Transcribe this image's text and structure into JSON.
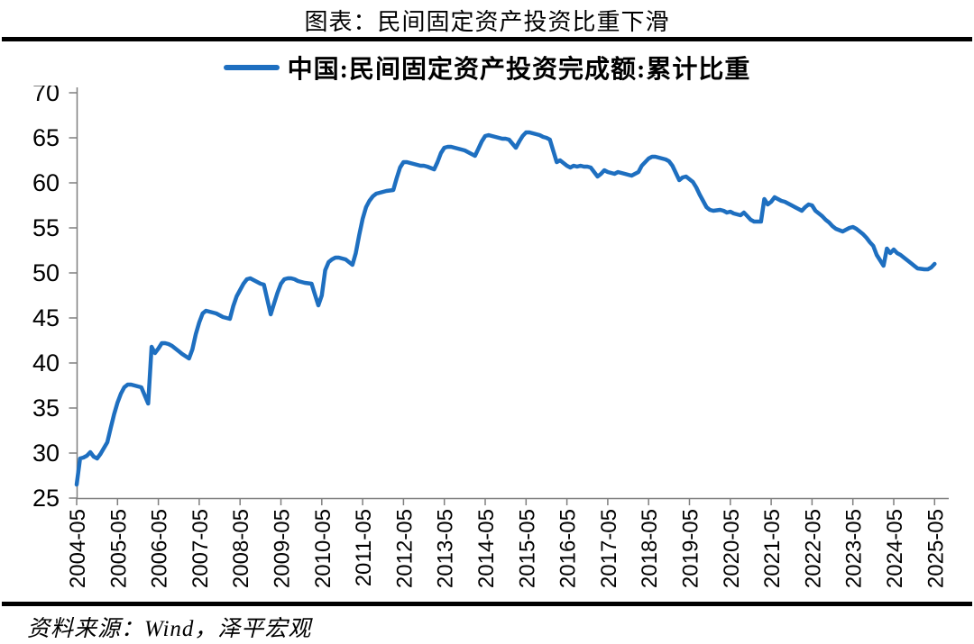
{
  "title": "图表：民间固定资产投资比重下滑",
  "legend": {
    "series_label": "中国:民间固定资产投资完成额:累计比重"
  },
  "source_note": "资料来源：Wind，泽平宏观",
  "colors": {
    "line": "#1E6FC0",
    "axis": "#7F7F7F",
    "rule": "#000000",
    "text": "#000000"
  },
  "chart_data": {
    "type": "line",
    "title": "图表：民间固定资产投资比重下滑",
    "xlabel": "",
    "ylabel": "",
    "unit": "%",
    "ylim": [
      25,
      70
    ],
    "y_ticks": [
      25,
      30,
      35,
      40,
      45,
      50,
      55,
      60,
      65,
      70
    ],
    "x_tick_labels": [
      "2004-05",
      "2005-05",
      "2006-05",
      "2007-05",
      "2008-05",
      "2009-05",
      "2010-05",
      "2011-05",
      "2012-05",
      "2013-05",
      "2014-05",
      "2015-05",
      "2016-05",
      "2017-05",
      "2018-05",
      "2019-05",
      "2020-05",
      "2021-05",
      "2022-05",
      "2023-05",
      "2024-05",
      "2025-05"
    ],
    "grid": false,
    "legend_position": "top-center",
    "line_color": "#1E6FC0",
    "series": [
      {
        "name": "中国:民间固定资产投资完成额:累计比重",
        "points": [
          [
            "2004-05",
            26.5
          ],
          [
            "2004-06",
            29.4
          ],
          [
            "2004-07",
            29.5
          ],
          [
            "2004-08",
            29.7
          ],
          [
            "2004-09",
            30.1
          ],
          [
            "2004-10",
            29.6
          ],
          [
            "2004-11",
            29.4
          ],
          [
            "2004-12",
            29.9
          ],
          [
            "2005-02",
            31.2
          ],
          [
            "2005-03",
            32.8
          ],
          [
            "2005-04",
            34.3
          ],
          [
            "2005-05",
            35.6
          ],
          [
            "2005-06",
            36.6
          ],
          [
            "2005-07",
            37.3
          ],
          [
            "2005-08",
            37.6
          ],
          [
            "2005-09",
            37.6
          ],
          [
            "2005-10",
            37.5
          ],
          [
            "2005-11",
            37.4
          ],
          [
            "2005-12",
            37.3
          ],
          [
            "2006-02",
            35.5
          ],
          [
            "2006-03",
            41.8
          ],
          [
            "2006-04",
            41.1
          ],
          [
            "2006-05",
            41.6
          ],
          [
            "2006-06",
            42.2
          ],
          [
            "2006-07",
            42.2
          ],
          [
            "2006-08",
            42.1
          ],
          [
            "2006-09",
            41.9
          ],
          [
            "2006-10",
            41.6
          ],
          [
            "2006-11",
            41.3
          ],
          [
            "2006-12",
            41.0
          ],
          [
            "2007-02",
            40.5
          ],
          [
            "2007-03",
            41.5
          ],
          [
            "2007-04",
            43.2
          ],
          [
            "2007-05",
            44.5
          ],
          [
            "2007-06",
            45.5
          ],
          [
            "2007-07",
            45.8
          ],
          [
            "2007-08",
            45.7
          ],
          [
            "2007-09",
            45.6
          ],
          [
            "2007-10",
            45.5
          ],
          [
            "2007-11",
            45.3
          ],
          [
            "2007-12",
            45.1
          ],
          [
            "2008-02",
            44.9
          ],
          [
            "2008-03",
            46.3
          ],
          [
            "2008-04",
            47.4
          ],
          [
            "2008-05",
            48.1
          ],
          [
            "2008-06",
            48.8
          ],
          [
            "2008-07",
            49.3
          ],
          [
            "2008-08",
            49.4
          ],
          [
            "2008-09",
            49.2
          ],
          [
            "2008-10",
            49.0
          ],
          [
            "2008-11",
            48.8
          ],
          [
            "2008-12",
            48.7
          ],
          [
            "2009-02",
            45.4
          ],
          [
            "2009-03",
            46.6
          ],
          [
            "2009-04",
            47.8
          ],
          [
            "2009-05",
            48.8
          ],
          [
            "2009-06",
            49.3
          ],
          [
            "2009-07",
            49.4
          ],
          [
            "2009-08",
            49.4
          ],
          [
            "2009-09",
            49.3
          ],
          [
            "2009-10",
            49.1
          ],
          [
            "2009-11",
            49.0
          ],
          [
            "2009-12",
            48.9
          ],
          [
            "2010-02",
            48.8
          ],
          [
            "2010-03",
            47.6
          ],
          [
            "2010-04",
            46.4
          ],
          [
            "2010-05",
            47.5
          ],
          [
            "2010-06",
            50.3
          ],
          [
            "2010-07",
            51.2
          ],
          [
            "2010-08",
            51.5
          ],
          [
            "2010-09",
            51.7
          ],
          [
            "2010-10",
            51.7
          ],
          [
            "2010-11",
            51.6
          ],
          [
            "2010-12",
            51.5
          ],
          [
            "2011-02",
            50.9
          ],
          [
            "2011-03",
            52.2
          ],
          [
            "2011-04",
            54.2
          ],
          [
            "2011-05",
            56.0
          ],
          [
            "2011-06",
            57.3
          ],
          [
            "2011-07",
            58.0
          ],
          [
            "2011-08",
            58.5
          ],
          [
            "2011-09",
            58.8
          ],
          [
            "2011-10",
            58.9
          ],
          [
            "2011-11",
            59.0
          ],
          [
            "2011-12",
            59.1
          ],
          [
            "2012-02",
            59.2
          ],
          [
            "2012-03",
            60.5
          ],
          [
            "2012-04",
            61.7
          ],
          [
            "2012-05",
            62.3
          ],
          [
            "2012-06",
            62.3
          ],
          [
            "2012-07",
            62.2
          ],
          [
            "2012-08",
            62.1
          ],
          [
            "2012-09",
            62.0
          ],
          [
            "2012-10",
            61.9
          ],
          [
            "2012-11",
            61.9
          ],
          [
            "2012-12",
            61.8
          ],
          [
            "2013-02",
            61.5
          ],
          [
            "2013-03",
            62.3
          ],
          [
            "2013-04",
            63.3
          ],
          [
            "2013-05",
            63.9
          ],
          [
            "2013-06",
            64.0
          ],
          [
            "2013-07",
            64.0
          ],
          [
            "2013-08",
            63.9
          ],
          [
            "2013-09",
            63.8
          ],
          [
            "2013-10",
            63.7
          ],
          [
            "2013-11",
            63.6
          ],
          [
            "2013-12",
            63.4
          ],
          [
            "2014-02",
            63.0
          ],
          [
            "2014-03",
            63.8
          ],
          [
            "2014-04",
            64.6
          ],
          [
            "2014-05",
            65.2
          ],
          [
            "2014-06",
            65.3
          ],
          [
            "2014-07",
            65.2
          ],
          [
            "2014-08",
            65.1
          ],
          [
            "2014-09",
            65.0
          ],
          [
            "2014-10",
            64.9
          ],
          [
            "2014-11",
            64.9
          ],
          [
            "2014-12",
            64.8
          ],
          [
            "2015-02",
            63.9
          ],
          [
            "2015-03",
            64.6
          ],
          [
            "2015-04",
            65.2
          ],
          [
            "2015-05",
            65.6
          ],
          [
            "2015-06",
            65.6
          ],
          [
            "2015-07",
            65.5
          ],
          [
            "2015-08",
            65.4
          ],
          [
            "2015-09",
            65.3
          ],
          [
            "2015-10",
            65.1
          ],
          [
            "2015-11",
            65.0
          ],
          [
            "2015-12",
            64.8
          ],
          [
            "2016-02",
            62.3
          ],
          [
            "2016-03",
            62.5
          ],
          [
            "2016-04",
            62.2
          ],
          [
            "2016-05",
            61.9
          ],
          [
            "2016-06",
            61.7
          ],
          [
            "2016-07",
            61.9
          ],
          [
            "2016-08",
            61.8
          ],
          [
            "2016-09",
            61.9
          ],
          [
            "2016-10",
            61.8
          ],
          [
            "2016-11",
            61.8
          ],
          [
            "2016-12",
            61.7
          ],
          [
            "2017-02",
            60.7
          ],
          [
            "2017-03",
            61.0
          ],
          [
            "2017-04",
            61.4
          ],
          [
            "2017-05",
            61.2
          ],
          [
            "2017-06",
            61.1
          ],
          [
            "2017-07",
            61.0
          ],
          [
            "2017-08",
            61.2
          ],
          [
            "2017-09",
            61.1
          ],
          [
            "2017-10",
            61.0
          ],
          [
            "2017-11",
            60.9
          ],
          [
            "2017-12",
            60.8
          ],
          [
            "2018-02",
            61.2
          ],
          [
            "2018-03",
            61.9
          ],
          [
            "2018-04",
            62.3
          ],
          [
            "2018-05",
            62.7
          ],
          [
            "2018-06",
            62.9
          ],
          [
            "2018-07",
            62.9
          ],
          [
            "2018-08",
            62.8
          ],
          [
            "2018-09",
            62.7
          ],
          [
            "2018-10",
            62.6
          ],
          [
            "2018-11",
            62.4
          ],
          [
            "2018-12",
            61.9
          ],
          [
            "2019-02",
            60.3
          ],
          [
            "2019-03",
            60.6
          ],
          [
            "2019-04",
            60.7
          ],
          [
            "2019-05",
            60.4
          ],
          [
            "2019-06",
            60.1
          ],
          [
            "2019-07",
            59.5
          ],
          [
            "2019-08",
            58.7
          ],
          [
            "2019-09",
            58.0
          ],
          [
            "2019-10",
            57.3
          ],
          [
            "2019-11",
            57.0
          ],
          [
            "2019-12",
            56.9
          ],
          [
            "2020-02",
            57.0
          ],
          [
            "2020-03",
            56.9
          ],
          [
            "2020-04",
            56.7
          ],
          [
            "2020-05",
            56.8
          ],
          [
            "2020-06",
            56.6
          ],
          [
            "2020-07",
            56.5
          ],
          [
            "2020-08",
            56.4
          ],
          [
            "2020-09",
            56.7
          ],
          [
            "2020-10",
            56.3
          ],
          [
            "2020-11",
            55.9
          ],
          [
            "2020-12",
            55.7
          ],
          [
            "2021-02",
            55.7
          ],
          [
            "2021-03",
            58.2
          ],
          [
            "2021-04",
            57.6
          ],
          [
            "2021-05",
            57.9
          ],
          [
            "2021-06",
            58.4
          ],
          [
            "2021-07",
            58.2
          ],
          [
            "2021-08",
            58.0
          ],
          [
            "2021-09",
            57.9
          ],
          [
            "2021-10",
            57.7
          ],
          [
            "2021-11",
            57.5
          ],
          [
            "2021-12",
            57.3
          ],
          [
            "2022-02",
            56.9
          ],
          [
            "2022-03",
            57.3
          ],
          [
            "2022-04",
            57.6
          ],
          [
            "2022-05",
            57.5
          ],
          [
            "2022-06",
            56.9
          ],
          [
            "2022-07",
            56.6
          ],
          [
            "2022-08",
            56.3
          ],
          [
            "2022-09",
            55.9
          ],
          [
            "2022-10",
            55.6
          ],
          [
            "2022-11",
            55.2
          ],
          [
            "2022-12",
            54.9
          ],
          [
            "2023-02",
            54.6
          ],
          [
            "2023-03",
            54.8
          ],
          [
            "2023-04",
            55.0
          ],
          [
            "2023-05",
            55.1
          ],
          [
            "2023-06",
            54.9
          ],
          [
            "2023-07",
            54.6
          ],
          [
            "2023-08",
            54.3
          ],
          [
            "2023-09",
            53.9
          ],
          [
            "2023-10",
            53.4
          ],
          [
            "2023-11",
            53.0
          ],
          [
            "2023-12",
            52.0
          ],
          [
            "2024-02",
            50.8
          ],
          [
            "2024-03",
            52.7
          ],
          [
            "2024-04",
            52.2
          ],
          [
            "2024-05",
            52.6
          ],
          [
            "2024-06",
            52.2
          ],
          [
            "2024-07",
            52.0
          ],
          [
            "2024-08",
            51.7
          ],
          [
            "2024-09",
            51.4
          ],
          [
            "2024-10",
            51.1
          ],
          [
            "2024-11",
            50.8
          ],
          [
            "2024-12",
            50.5
          ],
          [
            "2025-02",
            50.4
          ],
          [
            "2025-03",
            50.4
          ],
          [
            "2025-04",
            50.6
          ],
          [
            "2025-05",
            51.0
          ]
        ]
      }
    ]
  }
}
